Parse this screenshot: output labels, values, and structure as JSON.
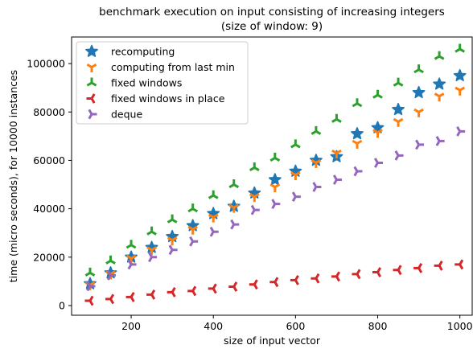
{
  "chart_data": {
    "type": "scatter",
    "title": "benchmark execution on input consisting of increasing integers",
    "subtitle": "(size of window: 9)",
    "xlabel": "size of input vector",
    "ylabel": "time (micro seconds), for 10000 instances",
    "xlim": [
      55,
      1030
    ],
    "ylim": [
      -4000,
      111000
    ],
    "xticks": [
      200,
      400,
      600,
      800,
      1000
    ],
    "yticks": [
      0,
      20000,
      40000,
      60000,
      80000,
      100000
    ],
    "grid": false,
    "legend_position": "top-left",
    "x": [
      100,
      150,
      200,
      250,
      300,
      350,
      400,
      450,
      500,
      550,
      600,
      650,
      700,
      750,
      800,
      850,
      900,
      950,
      1000
    ],
    "series": [
      {
        "name": "recomputing",
        "marker": "star",
        "color": "#1f77b4",
        "values": [
          9000,
          13500,
          20000,
          24000,
          28500,
          33000,
          38000,
          41000,
          46500,
          52000,
          55500,
          60000,
          61500,
          71000,
          73500,
          81000,
          88000,
          91500,
          95000
        ]
      },
      {
        "name": "computing from last min",
        "marker": "tri_down",
        "color": "#ff7f0e",
        "values": [
          8500,
          13000,
          19500,
          23000,
          27000,
          31500,
          36500,
          40500,
          45000,
          49000,
          54000,
          59000,
          63000,
          67000,
          71500,
          76000,
          80000,
          86500,
          89000
        ]
      },
      {
        "name": "fixed windows",
        "marker": "tri_up",
        "color": "#2ca02c",
        "values": [
          13500,
          18500,
          25000,
          30500,
          35500,
          40000,
          45500,
          50000,
          57000,
          61000,
          66500,
          72000,
          77000,
          83500,
          87000,
          92000,
          97500,
          103000,
          106000
        ]
      },
      {
        "name": "fixed windows in place",
        "marker": "tri_left",
        "color": "#d62728",
        "values": [
          2000,
          2700,
          3500,
          4500,
          5500,
          6000,
          7000,
          7800,
          8700,
          9700,
          10500,
          11200,
          12000,
          13000,
          13800,
          14700,
          15500,
          16500,
          17000
        ]
      },
      {
        "name": "deque",
        "marker": "tri_right",
        "color": "#9467bd",
        "values": [
          8000,
          12500,
          17000,
          20000,
          23000,
          26500,
          30500,
          33500,
          39500,
          42000,
          45000,
          49000,
          52000,
          55500,
          59000,
          62000,
          66500,
          68000,
          72000
        ]
      }
    ]
  }
}
